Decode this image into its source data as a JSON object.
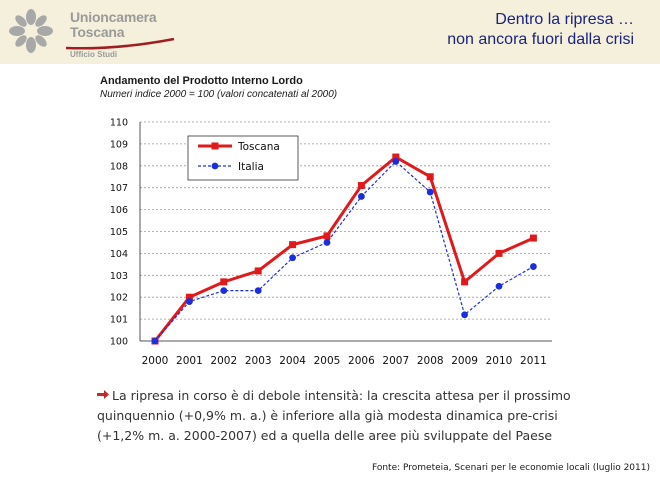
{
  "header": {
    "logo_line1": "Unioncamera",
    "logo_line2": "Toscana",
    "logo_sub": "Ufficio Studi",
    "title_line1": "Dentro la ripresa …",
    "title_line2": "non ancora fuori dalla crisi"
  },
  "chart_data": {
    "type": "line",
    "title": "Andamento del Prodotto Interno Lordo",
    "subtitle": "Numeri indice 2000 = 100 (valori concatenati al 2000)",
    "categories": [
      "2000",
      "2001",
      "2002",
      "2003",
      "2004",
      "2005",
      "2006",
      "2007",
      "2008",
      "2009",
      "2010",
      "2011"
    ],
    "yticks": [
      "100",
      "101",
      "102",
      "103",
      "104",
      "105",
      "106",
      "107",
      "108",
      "109",
      "110"
    ],
    "ylim": [
      100,
      110
    ],
    "grid": true,
    "legend_position": "top-left",
    "series": [
      {
        "name": "Toscana",
        "color": "#e0191b",
        "marker": "square",
        "values": [
          100.0,
          102.0,
          102.7,
          103.2,
          104.4,
          104.8,
          107.1,
          108.4,
          107.5,
          102.7,
          104.0,
          104.7
        ]
      },
      {
        "name": "Italia",
        "color": "#1a2ee0",
        "marker": "circle",
        "values": [
          100.0,
          101.8,
          102.3,
          102.3,
          103.8,
          104.5,
          106.6,
          108.2,
          106.8,
          101.2,
          102.5,
          103.4
        ]
      }
    ]
  },
  "body": {
    "text": "La ripresa in corso è di debole intensità: la crescita attesa per il prossimo quinquennio (+0,9% m. a.) è inferiore alla già modesta dinamica pre-crisi (+1,2% m. a. 2000-2007) ed a quella delle aree più sviluppate del Paese"
  },
  "footer": {
    "source": "Fonte: Prometeia, Scenari per le economie locali (luglio 2011)"
  }
}
